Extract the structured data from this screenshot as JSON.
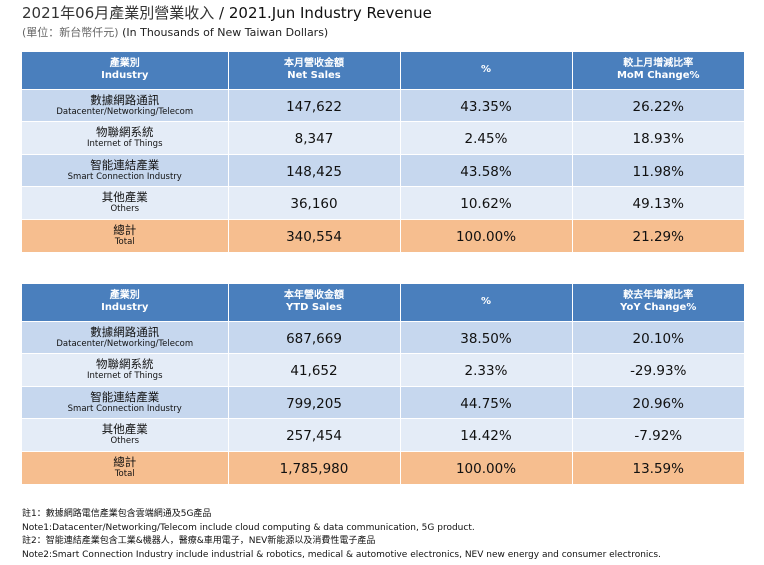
{
  "title": {
    "zh": "2021年06月產業別營業收入",
    "sep": " / ",
    "en": "2021.Jun Industry Revenue"
  },
  "subtitle": {
    "zh": "(單位：新台幣仟元)",
    "en": " (In Thousands of New Taiwan Dollars)"
  },
  "monthly": {
    "headers": [
      {
        "zh": "產業別",
        "en": "Industry"
      },
      {
        "zh": "本月營收金額",
        "en": "Net Sales"
      },
      {
        "zh": "%",
        "en": ""
      },
      {
        "zh": "較上月增減比率",
        "en": "MoM Change%"
      }
    ],
    "rows": [
      {
        "zh": "數據網路通訊",
        "en": "Datacenter/Networking/Telecom",
        "sales": "147,622",
        "pct": "43.35%",
        "change": "26.22%"
      },
      {
        "zh": "物聯網系統",
        "en": "Internet of Things",
        "sales": "8,347",
        "pct": "2.45%",
        "change": "18.93%"
      },
      {
        "zh": "智能連結產業",
        "en": "Smart Connection Industry",
        "sales": "148,425",
        "pct": "43.58%",
        "change": "11.98%"
      },
      {
        "zh": "其他產業",
        "en": "Others",
        "sales": "36,160",
        "pct": "10.62%",
        "change": "49.13%"
      }
    ],
    "total": {
      "zh": "總計",
      "en": "Total",
      "sales": "340,554",
      "pct": "100.00%",
      "change": "21.29%"
    }
  },
  "ytd": {
    "headers": [
      {
        "zh": "產業別",
        "en": "Industry"
      },
      {
        "zh": "本年營收金額",
        "en": "YTD Sales"
      },
      {
        "zh": "%",
        "en": ""
      },
      {
        "zh": "較去年增減比率",
        "en": "YoY Change%"
      }
    ],
    "rows": [
      {
        "zh": "數據網路通訊",
        "en": "Datacenter/Networking/Telecom",
        "sales": "687,669",
        "pct": "38.50%",
        "change": "20.10%"
      },
      {
        "zh": "物聯網系統",
        "en": "Internet of Things",
        "sales": "41,652",
        "pct": "2.33%",
        "change": "-29.93%"
      },
      {
        "zh": "智能連結產業",
        "en": "Smart Connection Industry",
        "sales": "799,205",
        "pct": "44.75%",
        "change": "20.96%"
      },
      {
        "zh": "其他產業",
        "en": "Others",
        "sales": "257,454",
        "pct": "14.42%",
        "change": "-7.92%"
      }
    ],
    "total": {
      "zh": "總計",
      "en": "Total",
      "sales": "1,785,980",
      "pct": "100.00%",
      "change": "13.59%"
    }
  },
  "notes": [
    "註1：數據網路電信產業包含雲端網通及5G產品",
    "Note1:Datacenter/Networking/Telecom include cloud computing & data communication, 5G product.",
    "註2：智能連結產業包含工業&機器人，醫療&車用電子，NEV新能源以及消費性電子產品",
    "Note2:Smart Connection Industry include industrial & robotics, medical & automotive electronics, NEV new energy and consumer electronics."
  ],
  "colors": {
    "header_bg": "#4a7fbd",
    "row_dark": "#c6d7ee",
    "row_light": "#e4ecf7",
    "total_bg": "#f6be8f"
  }
}
